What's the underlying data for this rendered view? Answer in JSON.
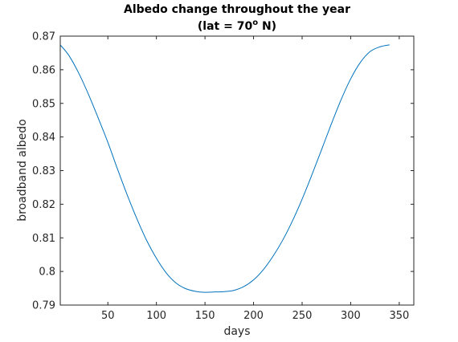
{
  "chart_data": {
    "type": "line",
    "title_line1": "Albedo change throughout the year",
    "title_line2_prefix": "(lat = 70",
    "title_line2_superscript": "o",
    "title_line2_suffix": " N)",
    "xlabel": "days",
    "ylabel": "broadband albedo",
    "xlim": [
      1,
      365
    ],
    "ylim": [
      0.79,
      0.87
    ],
    "xticks": [
      "50",
      "100",
      "150",
      "200",
      "250",
      "300",
      "350"
    ],
    "yticks": [
      "0.79",
      "0.8",
      "0.81",
      "0.82",
      "0.83",
      "0.84",
      "0.85",
      "0.86",
      "0.87"
    ],
    "grid": false,
    "line_color": "#0072bd",
    "series": [
      {
        "x": [
          1,
          10,
          20,
          30,
          40,
          50,
          60,
          70,
          80,
          90,
          100,
          110,
          120,
          130,
          140,
          150,
          160,
          170,
          180,
          190,
          200,
          210,
          220,
          230,
          240,
          250,
          260,
          270,
          280,
          290,
          300,
          310,
          320,
          330,
          340
        ],
        "values": [
          0.8674,
          0.8642,
          0.859,
          0.8527,
          0.8457,
          0.8384,
          0.8304,
          0.8227,
          0.8156,
          0.8092,
          0.8039,
          0.7996,
          0.7966,
          0.7949,
          0.7941,
          0.7938,
          0.7939,
          0.794,
          0.7944,
          0.7955,
          0.7975,
          0.8005,
          0.8045,
          0.8093,
          0.815,
          0.8215,
          0.8287,
          0.8362,
          0.8438,
          0.851,
          0.8573,
          0.8622,
          0.8654,
          0.8668,
          0.8674
        ]
      }
    ]
  }
}
